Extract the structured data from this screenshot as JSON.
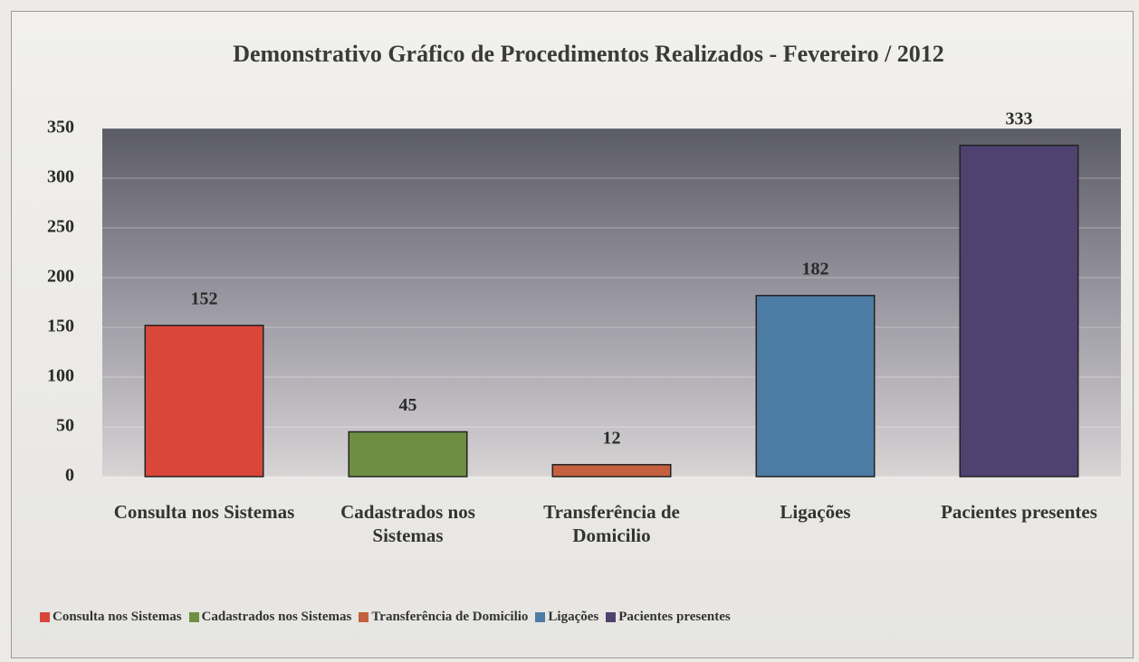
{
  "chart_data": {
    "type": "bar",
    "title": "Demonstrativo Gráfico de Procedimentos Realizados - Fevereiro / 2012",
    "categories": [
      "Consulta nos Sistemas",
      "Cadastrados nos Sistemas",
      "Transferência de Domicilio",
      "Ligações",
      "Pacientes presentes"
    ],
    "values": [
      152,
      45,
      12,
      182,
      333
    ],
    "colors": [
      "#d9473b",
      "#6e8f42",
      "#c4603e",
      "#4c7ca3",
      "#4f4170"
    ],
    "ylim": [
      0,
      350
    ],
    "yticks": [
      0,
      50,
      100,
      150,
      200,
      250,
      300,
      350
    ],
    "grid": true,
    "legend": "bottom"
  }
}
